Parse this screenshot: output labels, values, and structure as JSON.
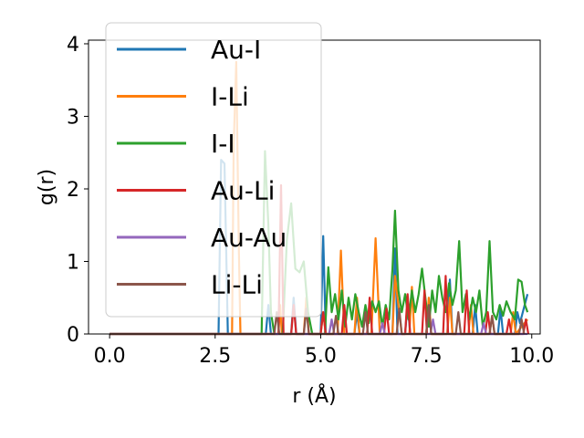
{
  "chart_data": {
    "type": "line",
    "title": "",
    "xlabel": "r (Å)",
    "ylabel": "g(r)",
    "xlim": [
      -0.5,
      10.2
    ],
    "ylim": [
      0,
      4.05
    ],
    "xticks": [
      0.0,
      2.5,
      5.0,
      7.5,
      10.0
    ],
    "xtick_labels": [
      "0.0",
      "2.5",
      "5.0",
      "7.5",
      "10.0"
    ],
    "yticks": [
      0,
      1,
      2,
      3,
      4
    ],
    "ytick_labels": [
      "0",
      "1",
      "2",
      "3",
      "4"
    ],
    "grid": false,
    "legend_position": "top-left",
    "series": [
      {
        "name": "Au-I",
        "color": "#1f77b4",
        "points": [
          [
            0,
            0
          ],
          [
            2.5,
            0
          ],
          [
            2.58,
            0
          ],
          [
            2.64,
            2.4
          ],
          [
            2.72,
            2.35
          ],
          [
            2.8,
            0
          ],
          [
            3.7,
            0
          ],
          [
            3.76,
            0.4
          ],
          [
            3.82,
            0
          ],
          [
            4.3,
            0
          ],
          [
            4.36,
            0.5
          ],
          [
            4.42,
            0
          ],
          [
            5.0,
            0
          ],
          [
            5.06,
            1.35
          ],
          [
            5.12,
            0
          ],
          [
            5.8,
            0
          ],
          [
            5.86,
            0.3
          ],
          [
            5.92,
            0
          ],
          [
            6.7,
            0
          ],
          [
            6.76,
            1.18
          ],
          [
            6.82,
            0
          ],
          [
            7.0,
            0
          ],
          [
            7.06,
            0.45
          ],
          [
            7.12,
            0
          ],
          [
            7.5,
            0
          ],
          [
            7.56,
            0.35
          ],
          [
            7.62,
            0
          ],
          [
            8.0,
            0
          ],
          [
            8.06,
            0.75
          ],
          [
            8.12,
            0
          ],
          [
            8.6,
            0
          ],
          [
            8.66,
            0.4
          ],
          [
            8.72,
            0
          ],
          [
            9.2,
            0
          ],
          [
            9.26,
            0.35
          ],
          [
            9.32,
            0
          ],
          [
            9.6,
            0
          ],
          [
            9.66,
            0.3
          ],
          [
            9.72,
            0.15
          ],
          [
            9.9,
            0.55
          ]
        ]
      },
      {
        "name": "I-Li",
        "color": "#ff7f0e",
        "points": [
          [
            0,
            0
          ],
          [
            2.9,
            0
          ],
          [
            2.94,
            2.6
          ],
          [
            3.0,
            3.75
          ],
          [
            3.06,
            1.2
          ],
          [
            3.1,
            0
          ],
          [
            4.0,
            0
          ],
          [
            4.04,
            0.4
          ],
          [
            4.08,
            0
          ],
          [
            4.6,
            0
          ],
          [
            4.66,
            0.5
          ],
          [
            4.72,
            0
          ],
          [
            5.0,
            0
          ],
          [
            5.06,
            0.3
          ],
          [
            5.12,
            0
          ],
          [
            5.4,
            0
          ],
          [
            5.48,
            1.15
          ],
          [
            5.56,
            0
          ],
          [
            5.8,
            0
          ],
          [
            5.86,
            0.5
          ],
          [
            5.92,
            0
          ],
          [
            6.2,
            0
          ],
          [
            6.3,
            1.32
          ],
          [
            6.4,
            0
          ],
          [
            6.7,
            0
          ],
          [
            6.76,
            0.8
          ],
          [
            6.84,
            0.4
          ],
          [
            6.92,
            0
          ],
          [
            7.1,
            0
          ],
          [
            7.16,
            0.65
          ],
          [
            7.22,
            0
          ],
          [
            7.5,
            0
          ],
          [
            7.56,
            0.5
          ],
          [
            7.62,
            0
          ],
          [
            8.0,
            0
          ],
          [
            8.06,
            0.5
          ],
          [
            8.12,
            0
          ],
          [
            8.5,
            0
          ],
          [
            8.56,
            0.4
          ],
          [
            8.62,
            0
          ],
          [
            9.0,
            0
          ],
          [
            9.06,
            0.25
          ],
          [
            9.12,
            0
          ],
          [
            9.5,
            0
          ],
          [
            9.56,
            0.3
          ],
          [
            9.62,
            0
          ],
          [
            9.9,
            0.2
          ]
        ]
      },
      {
        "name": "I-I",
        "color": "#2ca02c",
        "points": [
          [
            0,
            0
          ],
          [
            3.6,
            0
          ],
          [
            3.68,
            2.52
          ],
          [
            3.76,
            1.5
          ],
          [
            3.82,
            0.3
          ],
          [
            3.9,
            0
          ],
          [
            4.1,
            0
          ],
          [
            4.2,
            1.3
          ],
          [
            4.3,
            1.8
          ],
          [
            4.4,
            0.9
          ],
          [
            4.5,
            0.85
          ],
          [
            4.6,
            1.0
          ],
          [
            4.7,
            0.3
          ],
          [
            4.8,
            0
          ],
          [
            5.1,
            0
          ],
          [
            5.18,
            0.92
          ],
          [
            5.26,
            0.3
          ],
          [
            5.34,
            0.55
          ],
          [
            5.42,
            0.2
          ],
          [
            5.5,
            0.6
          ],
          [
            5.58,
            0.1
          ],
          [
            5.66,
            0.5
          ],
          [
            5.74,
            0.2
          ],
          [
            5.82,
            0.55
          ],
          [
            5.9,
            0.3
          ],
          [
            5.98,
            0.1
          ],
          [
            6.06,
            0.4
          ],
          [
            6.14,
            0.15
          ],
          [
            6.22,
            0.45
          ],
          [
            6.3,
            0.3
          ],
          [
            6.38,
            0.45
          ],
          [
            6.46,
            0.1
          ],
          [
            6.54,
            0.4
          ],
          [
            6.62,
            0.2
          ],
          [
            6.7,
            0.9
          ],
          [
            6.76,
            1.7
          ],
          [
            6.84,
            0.6
          ],
          [
            6.92,
            0.3
          ],
          [
            7.0,
            0.55
          ],
          [
            7.08,
            0.2
          ],
          [
            7.16,
            0.6
          ],
          [
            7.24,
            0.3
          ],
          [
            7.32,
            0.55
          ],
          [
            7.4,
            0.9
          ],
          [
            7.48,
            0.5
          ],
          [
            7.56,
            0.1
          ],
          [
            7.64,
            0.6
          ],
          [
            7.72,
            0.3
          ],
          [
            7.8,
            0.8
          ],
          [
            7.88,
            0.5
          ],
          [
            7.96,
            0.3
          ],
          [
            8.04,
            0.7
          ],
          [
            8.12,
            0.4
          ],
          [
            8.2,
            0.6
          ],
          [
            8.28,
            1.28
          ],
          [
            8.36,
            0.3
          ],
          [
            8.44,
            0.55
          ],
          [
            8.52,
            0.2
          ],
          [
            8.6,
            0.5
          ],
          [
            8.68,
            0.3
          ],
          [
            8.76,
            0.6
          ],
          [
            8.84,
            0.1
          ],
          [
            8.92,
            0.3
          ],
          [
            9.0,
            1.28
          ],
          [
            9.08,
            0.3
          ],
          [
            9.16,
            0.2
          ],
          [
            9.24,
            0.4
          ],
          [
            9.32,
            0.25
          ],
          [
            9.4,
            0.45
          ],
          [
            9.5,
            0.3
          ],
          [
            9.6,
            0.2
          ],
          [
            9.68,
            0.75
          ],
          [
            9.76,
            0.72
          ],
          [
            9.84,
            0.4
          ],
          [
            9.9,
            0.3
          ]
        ]
      },
      {
        "name": "Au-Li",
        "color": "#d62728",
        "points": [
          [
            0,
            0
          ],
          [
            4.0,
            0
          ],
          [
            4.06,
            2.05
          ],
          [
            4.12,
            0
          ],
          [
            4.3,
            0
          ],
          [
            4.36,
            0.4
          ],
          [
            4.42,
            0
          ],
          [
            5.0,
            0
          ],
          [
            5.06,
            0.3
          ],
          [
            5.12,
            0
          ],
          [
            5.5,
            0
          ],
          [
            5.56,
            0.4
          ],
          [
            5.62,
            0
          ],
          [
            6.1,
            0
          ],
          [
            6.16,
            0.5
          ],
          [
            6.22,
            0
          ],
          [
            6.5,
            0
          ],
          [
            6.56,
            0.35
          ],
          [
            6.62,
            0
          ],
          [
            7.0,
            0
          ],
          [
            7.06,
            0.55
          ],
          [
            7.12,
            0
          ],
          [
            7.4,
            0
          ],
          [
            7.46,
            0.6
          ],
          [
            7.52,
            0
          ],
          [
            7.9,
            0
          ],
          [
            7.96,
            0.8
          ],
          [
            8.02,
            0
          ],
          [
            8.4,
            0
          ],
          [
            8.46,
            0.6
          ],
          [
            8.52,
            0
          ],
          [
            8.9,
            0
          ],
          [
            8.96,
            0.3
          ],
          [
            9.02,
            0
          ],
          [
            9.4,
            0
          ],
          [
            9.46,
            0.2
          ],
          [
            9.52,
            0
          ],
          [
            9.8,
            0
          ],
          [
            9.86,
            0.2
          ],
          [
            9.92,
            0
          ]
        ]
      },
      {
        "name": "Au-Au",
        "color": "#9467bd",
        "points": [
          [
            0,
            0
          ],
          [
            5.2,
            0
          ],
          [
            5.26,
            0.2
          ],
          [
            5.32,
            0
          ],
          [
            6.4,
            0
          ],
          [
            6.46,
            0.15
          ],
          [
            6.52,
            0
          ],
          [
            7.6,
            0
          ],
          [
            7.66,
            0.2
          ],
          [
            7.72,
            0
          ],
          [
            8.8,
            0
          ],
          [
            8.86,
            0.15
          ],
          [
            8.92,
            0
          ],
          [
            9.9,
            0
          ]
        ]
      },
      {
        "name": "Li-Li",
        "color": "#8c564b",
        "points": [
          [
            0,
            0
          ],
          [
            3.9,
            0
          ],
          [
            3.96,
            0.3
          ],
          [
            4.02,
            0
          ],
          [
            4.6,
            0
          ],
          [
            4.66,
            0.35
          ],
          [
            4.72,
            0
          ],
          [
            5.3,
            0
          ],
          [
            5.36,
            0.25
          ],
          [
            5.42,
            0
          ],
          [
            6.0,
            0
          ],
          [
            6.06,
            0.3
          ],
          [
            6.12,
            0
          ],
          [
            6.8,
            0
          ],
          [
            6.86,
            0.35
          ],
          [
            6.92,
            0
          ],
          [
            7.5,
            0
          ],
          [
            7.56,
            0.4
          ],
          [
            7.62,
            0
          ],
          [
            8.2,
            0
          ],
          [
            8.26,
            0.3
          ],
          [
            8.32,
            0
          ],
          [
            9.0,
            0
          ],
          [
            9.06,
            0.25
          ],
          [
            9.12,
            0
          ],
          [
            9.7,
            0
          ],
          [
            9.76,
            0.2
          ],
          [
            9.82,
            0
          ]
        ]
      }
    ]
  }
}
